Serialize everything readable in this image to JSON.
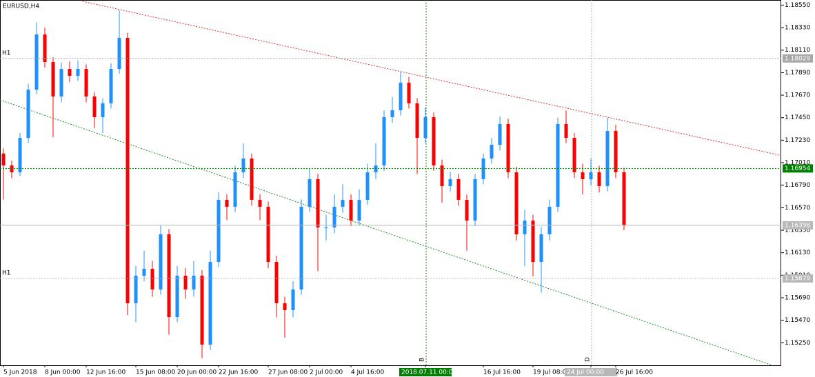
{
  "chart_data": {
    "type": "candlestick",
    "title": "EURUSD,H4",
    "categories": [
      "5 Jun 2018",
      null,
      null,
      null,
      null,
      "8 Jun 00:00",
      null,
      null,
      null,
      null,
      "12 Jun 16:00",
      null,
      null,
      null,
      null,
      null,
      "15 Jun 08:00",
      null,
      null,
      null,
      null,
      "20 Jun 00:00",
      null,
      null,
      null,
      null,
      "22 Jun 16:00",
      null,
      null,
      null,
      null,
      null,
      "27 Jun 08:00",
      null,
      null,
      null,
      null,
      "2 Jul 00:00",
      null,
      null,
      null,
      null,
      "4 Jul 16:00",
      null,
      null,
      null,
      null,
      null,
      null,
      null,
      null,
      "2018.07.11 00:00",
      null,
      null,
      null,
      null,
      null,
      null,
      "16 Jul 16:00",
      null,
      null,
      null,
      null,
      null,
      "19 Jul 08:00",
      null,
      null,
      null,
      null,
      null,
      null,
      "24 Jul 00:00",
      null,
      null,
      "26 Jul 16:00",
      null
    ],
    "open": [
      1.171,
      1.16983,
      1.16916,
      1.17253,
      1.17724,
      1.18263,
      1.17994,
      1.17657,
      1.17926,
      1.17859,
      1.17926,
      1.17657,
      1.17455,
      1.1759,
      1.17926,
      1.1823,
      1.15636,
      1.15906,
      1.15973,
      1.15771,
      1.1631,
      1.15501,
      1.15906,
      1.15771,
      1.15906,
      1.15232,
      1.1604,
      1.16647,
      1.16579,
      1.16916,
      1.17051,
      1.16647,
      1.16579,
      1.1604,
      1.15636,
      1.15569,
      1.15771,
      1.16579,
      1.16849,
      1.16377,
      1.16377,
      1.16579,
      1.16647,
      1.16444,
      1.16647,
      1.16916,
      1.16983,
      1.17455,
      1.17522,
      1.17792,
      1.1759,
      1.17253,
      1.17455,
      1.16983,
      1.16781,
      1.16849,
      1.16647,
      1.16444,
      1.16849,
      1.17051,
      1.17185,
      1.17388,
      1.16916,
      1.1631,
      1.16444,
      1.1604,
      1.1631,
      1.16579,
      1.17388,
      1.17253,
      1.16916,
      1.16849,
      1.16916,
      1.16781,
      1.1732,
      1.16916
    ],
    "high": [
      1.1715,
      1.1703,
      1.173,
      1.1778,
      1.1838,
      1.1833,
      1.1804,
      1.1799,
      1.18,
      1.1801,
      1.1797,
      1.177,
      1.1764,
      1.1798,
      1.185,
      1.1828,
      1.16,
      1.1615,
      1.1605,
      1.164,
      1.1636,
      1.16,
      1.1598,
      1.1605,
      1.1596,
      1.1615,
      1.1672,
      1.167,
      1.1698,
      1.172,
      1.171,
      1.167,
      1.1663,
      1.161,
      1.157,
      1.1585,
      1.1665,
      1.1695,
      1.169,
      1.165,
      1.167,
      1.168,
      1.167,
      1.1675,
      1.17,
      1.172,
      1.1752,
      1.1765,
      1.179,
      1.1785,
      1.1764,
      1.1755,
      1.175,
      1.1704,
      1.1692,
      1.169,
      1.167,
      1.169,
      1.171,
      1.1725,
      1.1746,
      1.1744,
      1.1697,
      1.1655,
      1.165,
      1.1638,
      1.1665,
      1.1745,
      1.1752,
      1.173,
      1.17,
      1.1705,
      1.1698,
      1.1745,
      1.1738,
      1.1696
    ],
    "low": [
      1.1665,
      1.1686,
      1.1688,
      1.172,
      1.1768,
      1.1794,
      1.1726,
      1.176,
      1.178,
      1.1781,
      1.176,
      1.1735,
      1.173,
      1.1754,
      1.1788,
      1.1552,
      1.1545,
      1.1585,
      1.157,
      1.1572,
      1.1533,
      1.1545,
      1.1568,
      1.157,
      1.151,
      1.1518,
      1.1599,
      1.1645,
      1.1653,
      1.1686,
      1.1659,
      1.1645,
      1.1598,
      1.155,
      1.153,
      1.155,
      1.1572,
      1.1653,
      1.1595,
      1.1625,
      1.1632,
      1.1652,
      1.1639,
      1.164,
      1.166,
      1.1685,
      1.1693,
      1.174,
      1.1747,
      1.1754,
      1.169,
      1.172,
      1.1693,
      1.1662,
      1.1673,
      1.1659,
      1.1615,
      1.1639,
      1.168,
      1.17,
      1.1713,
      1.1686,
      1.1625,
      1.16,
      1.159,
      1.1574,
      1.1625,
      1.1653,
      1.172,
      1.1686,
      1.167,
      1.1679,
      1.1672,
      1.1673,
      1.1686,
      1.1635
    ],
    "close": [
      1.16983,
      1.16916,
      1.17253,
      1.17724,
      1.18263,
      1.17994,
      1.17657,
      1.17926,
      1.17859,
      1.17926,
      1.17657,
      1.17455,
      1.1759,
      1.17926,
      1.1823,
      1.15636,
      1.15906,
      1.15973,
      1.15771,
      1.1631,
      1.15501,
      1.15906,
      1.15771,
      1.15906,
      1.15232,
      1.1604,
      1.16647,
      1.16579,
      1.16916,
      1.17051,
      1.16647,
      1.16579,
      1.1604,
      1.15636,
      1.15569,
      1.15771,
      1.16579,
      1.16849,
      1.16377,
      1.16377,
      1.16579,
      1.16647,
      1.16444,
      1.16647,
      1.16916,
      1.16983,
      1.17455,
      1.17522,
      1.17792,
      1.1759,
      1.17253,
      1.17455,
      1.16983,
      1.16781,
      1.16849,
      1.16647,
      1.16444,
      1.16849,
      1.17051,
      1.17185,
      1.17388,
      1.16916,
      1.1631,
      1.16444,
      1.1604,
      1.1631,
      1.16579,
      1.17388,
      1.17253,
      1.16916,
      1.16849,
      1.16916,
      1.16781,
      1.1732,
      1.16916,
      1.16398
    ],
    "up_color": "#1e90ff",
    "down_color": "#ff0000",
    "ylim": [
      1.1503,
      1.186
    ],
    "yticks": [
      {
        "value": 1.1855,
        "label": "1.18550"
      },
      {
        "value": 1.1833,
        "label": "1.18330"
      },
      {
        "value": 1.1811,
        "label": "1.18110"
      },
      {
        "value": 1.1789,
        "label": "1.17890"
      },
      {
        "value": 1.1767,
        "label": "1.17670"
      },
      {
        "value": 1.1745,
        "label": "1.17450"
      },
      {
        "value": 1.1723,
        "label": "1.17230"
      },
      {
        "value": 1.1701,
        "label": "1.17010"
      },
      {
        "value": 1.1679,
        "label": "1.16790"
      },
      {
        "value": 1.1657,
        "label": "1.16570"
      },
      {
        "value": 1.1635,
        "label": "1.16350"
      },
      {
        "value": 1.1613,
        "label": "1.16130"
      },
      {
        "value": 1.1591,
        "label": "1.15910"
      },
      {
        "value": 1.1569,
        "label": "1.15690"
      },
      {
        "value": 1.1547,
        "label": "1.15470"
      },
      {
        "value": 1.1525,
        "label": "1.15250"
      }
    ],
    "levels": [
      {
        "value": 1.18029,
        "label": "1.18029",
        "color": "#a8a8a8",
        "tag": "H1"
      },
      {
        "value": 1.16954,
        "label": "1.16954",
        "color": "#008000"
      },
      {
        "value": 1.16398,
        "label": "1.16398",
        "color": "#b8b8b8"
      },
      {
        "value": 1.15879,
        "label": "1.15879",
        "color": "#b8b8b8",
        "tag": "H1"
      }
    ],
    "annotations": [
      "B",
      "D"
    ]
  }
}
